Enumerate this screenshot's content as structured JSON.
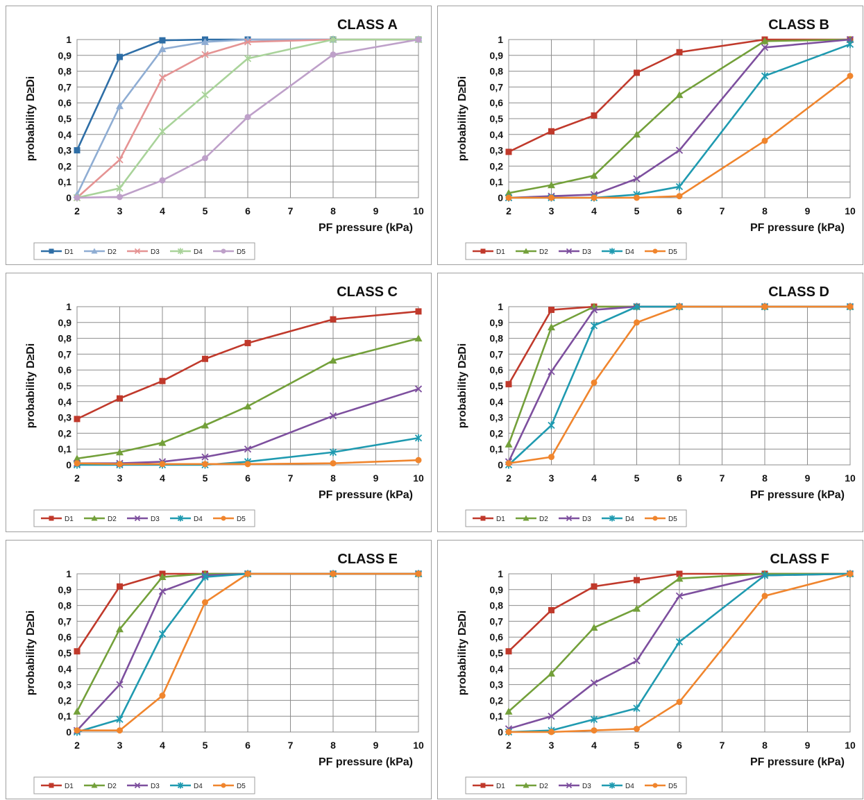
{
  "chart_data": [
    {
      "type": "line",
      "title": "CLASS A",
      "xlabel": "PF pressure (kPa)",
      "ylabel": "probability D≥Di",
      "x": [
        2,
        3,
        4,
        5,
        6,
        8,
        10
      ],
      "xlim": [
        2,
        10
      ],
      "ylim": [
        0,
        1
      ],
      "grid": true,
      "legend": "bottom-left",
      "series": [
        {
          "name": "D1",
          "marker": "square",
          "color": "#2e6ea6",
          "values": [
            0.3,
            0.89,
            0.995,
            1.0,
            1.0,
            1.0,
            1.0
          ]
        },
        {
          "name": "D2",
          "marker": "triangle",
          "color": "#8fadd3",
          "values": [
            0.02,
            0.58,
            0.94,
            0.985,
            1.0,
            1.0,
            1.0
          ]
        },
        {
          "name": "D3",
          "marker": "x",
          "color": "#e59393",
          "values": [
            0.0,
            0.24,
            0.76,
            0.905,
            0.985,
            1.0,
            1.0
          ]
        },
        {
          "name": "D4",
          "marker": "star",
          "color": "#a9d39a",
          "values": [
            0.0,
            0.06,
            0.42,
            0.65,
            0.88,
            1.0,
            1.0
          ]
        },
        {
          "name": "D5",
          "marker": "circle",
          "color": "#bea0c9",
          "values": [
            0.0,
            0.005,
            0.11,
            0.25,
            0.51,
            0.905,
            1.0
          ]
        }
      ]
    },
    {
      "type": "line",
      "title": "CLASS B",
      "xlabel": "PF pressure (kPa)",
      "ylabel": "probability D≥Di",
      "x": [
        2,
        3,
        4,
        5,
        6,
        8,
        10
      ],
      "xlim": [
        2,
        10
      ],
      "ylim": [
        0,
        1
      ],
      "grid": true,
      "legend": "bottom-left",
      "series": [
        {
          "name": "D1",
          "marker": "square",
          "color": "#c0392b",
          "values": [
            0.29,
            0.42,
            0.52,
            0.79,
            0.92,
            1.0,
            1.0
          ]
        },
        {
          "name": "D2",
          "marker": "triangle",
          "color": "#73a03a",
          "values": [
            0.03,
            0.08,
            0.14,
            0.4,
            0.65,
            0.99,
            1.0
          ]
        },
        {
          "name": "D3",
          "marker": "x",
          "color": "#7d4f9e",
          "values": [
            0.0,
            0.01,
            0.02,
            0.12,
            0.3,
            0.95,
            1.0
          ]
        },
        {
          "name": "D4",
          "marker": "star",
          "color": "#1f9ab0",
          "values": [
            0.0,
            0.0,
            0.0,
            0.02,
            0.07,
            0.77,
            0.97
          ]
        },
        {
          "name": "D5",
          "marker": "circle",
          "color": "#f0852d",
          "values": [
            0.0,
            0.0,
            0.0,
            0.0,
            0.01,
            0.36,
            0.77
          ]
        }
      ]
    },
    {
      "type": "line",
      "title": "CLASS C",
      "xlabel": "PF pressure (kPa)",
      "ylabel": "probability D≥Di",
      "x": [
        2,
        3,
        4,
        5,
        6,
        8,
        10
      ],
      "xlim": [
        2,
        10
      ],
      "ylim": [
        0,
        1
      ],
      "grid": true,
      "legend": "bottom-left",
      "series": [
        {
          "name": "D1",
          "marker": "square",
          "color": "#c0392b",
          "values": [
            0.29,
            0.42,
            0.53,
            0.67,
            0.77,
            0.92,
            0.97
          ]
        },
        {
          "name": "D2",
          "marker": "triangle",
          "color": "#73a03a",
          "values": [
            0.04,
            0.08,
            0.14,
            0.25,
            0.37,
            0.66,
            0.8
          ]
        },
        {
          "name": "D3",
          "marker": "x",
          "color": "#7d4f9e",
          "values": [
            0.01,
            0.01,
            0.02,
            0.05,
            0.1,
            0.31,
            0.48
          ]
        },
        {
          "name": "D4",
          "marker": "star",
          "color": "#1f9ab0",
          "values": [
            0.0,
            0.0,
            0.0,
            0.0,
            0.02,
            0.08,
            0.17
          ]
        },
        {
          "name": "D5",
          "marker": "circle",
          "color": "#f0852d",
          "values": [
            0.01,
            0.005,
            0.005,
            0.005,
            0.005,
            0.01,
            0.03
          ]
        }
      ]
    },
    {
      "type": "line",
      "title": "CLASS D",
      "xlabel": "PF pressure (kPa)",
      "ylabel": "probability D≥Di",
      "x": [
        2,
        3,
        4,
        5,
        6,
        8,
        10
      ],
      "xlim": [
        2,
        10
      ],
      "ylim": [
        0,
        1
      ],
      "grid": true,
      "legend": "bottom-left",
      "series": [
        {
          "name": "D1",
          "marker": "square",
          "color": "#c0392b",
          "values": [
            0.51,
            0.98,
            1.0,
            1.0,
            1.0,
            1.0,
            1.0
          ]
        },
        {
          "name": "D2",
          "marker": "triangle",
          "color": "#73a03a",
          "values": [
            0.13,
            0.87,
            1.0,
            1.0,
            1.0,
            1.0,
            1.0
          ]
        },
        {
          "name": "D3",
          "marker": "x",
          "color": "#7d4f9e",
          "values": [
            0.02,
            0.59,
            0.98,
            1.0,
            1.0,
            1.0,
            1.0
          ]
        },
        {
          "name": "D4",
          "marker": "star",
          "color": "#1f9ab0",
          "values": [
            0.0,
            0.25,
            0.88,
            1.0,
            1.0,
            1.0,
            1.0
          ]
        },
        {
          "name": "D5",
          "marker": "circle",
          "color": "#f0852d",
          "values": [
            0.01,
            0.05,
            0.52,
            0.9,
            1.0,
            1.0,
            1.0
          ]
        }
      ]
    },
    {
      "type": "line",
      "title": "CLASS E",
      "xlabel": "PF pressure (kPa)",
      "ylabel": "probability D≥Di",
      "x": [
        2,
        3,
        4,
        5,
        6,
        8,
        10
      ],
      "xlim": [
        2,
        10
      ],
      "ylim": [
        0,
        1
      ],
      "grid": true,
      "legend": "bottom-left",
      "series": [
        {
          "name": "D1",
          "marker": "square",
          "color": "#c0392b",
          "values": [
            0.51,
            0.92,
            1.0,
            1.0,
            1.0,
            1.0,
            1.0
          ]
        },
        {
          "name": "D2",
          "marker": "triangle",
          "color": "#73a03a",
          "values": [
            0.13,
            0.65,
            0.98,
            1.0,
            1.0,
            1.0,
            1.0
          ]
        },
        {
          "name": "D3",
          "marker": "x",
          "color": "#7d4f9e",
          "values": [
            0.01,
            0.3,
            0.89,
            0.99,
            1.0,
            1.0,
            1.0
          ]
        },
        {
          "name": "D4",
          "marker": "star",
          "color": "#1f9ab0",
          "values": [
            0.0,
            0.08,
            0.62,
            0.98,
            1.0,
            1.0,
            1.0
          ]
        },
        {
          "name": "D5",
          "marker": "circle",
          "color": "#f0852d",
          "values": [
            0.01,
            0.01,
            0.23,
            0.82,
            1.0,
            1.0,
            1.0
          ]
        }
      ]
    },
    {
      "type": "line",
      "title": "CLASS F",
      "xlabel": "PF pressure (kPa)",
      "ylabel": "probability D≥Di",
      "x": [
        2,
        3,
        4,
        5,
        6,
        8,
        10
      ],
      "xlim": [
        2,
        10
      ],
      "ylim": [
        0,
        1
      ],
      "grid": true,
      "legend": "bottom-left",
      "series": [
        {
          "name": "D1",
          "marker": "square",
          "color": "#c0392b",
          "values": [
            0.51,
            0.77,
            0.92,
            0.96,
            1.0,
            1.0,
            1.0
          ]
        },
        {
          "name": "D2",
          "marker": "triangle",
          "color": "#73a03a",
          "values": [
            0.13,
            0.37,
            0.66,
            0.78,
            0.97,
            1.0,
            1.0
          ]
        },
        {
          "name": "D3",
          "marker": "x",
          "color": "#7d4f9e",
          "values": [
            0.02,
            0.1,
            0.31,
            0.45,
            0.86,
            0.99,
            1.0
          ]
        },
        {
          "name": "D4",
          "marker": "star",
          "color": "#1f9ab0",
          "values": [
            0.0,
            0.01,
            0.08,
            0.15,
            0.57,
            0.99,
            1.0
          ]
        },
        {
          "name": "D5",
          "marker": "circle",
          "color": "#f0852d",
          "values": [
            0.0,
            0.0,
            0.01,
            0.02,
            0.19,
            0.86,
            1.0
          ]
        }
      ]
    }
  ],
  "ticks": {
    "x": [
      "2",
      "3",
      "4",
      "5",
      "6",
      "7",
      "8",
      "9",
      "10"
    ],
    "y": [
      "0",
      "0,1",
      "0,2",
      "0,3",
      "0,4",
      "0,5",
      "0,6",
      "0,7",
      "0,8",
      "0,9",
      "1"
    ]
  }
}
